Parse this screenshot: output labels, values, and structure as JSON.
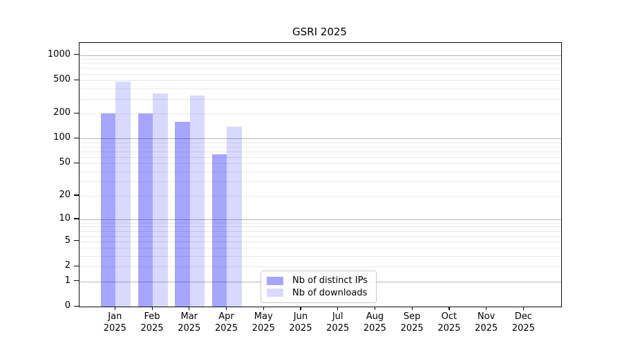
{
  "chart_data": {
    "type": "bar",
    "title": "GSRI 2025",
    "categories": [
      "Jan 2025",
      "Feb 2025",
      "Mar 2025",
      "Apr 2025",
      "May 2025",
      "Jun 2025",
      "Jul 2025",
      "Aug 2025",
      "Sep 2025",
      "Oct 2025",
      "Nov 2025",
      "Dec 2025"
    ],
    "months": [
      "Jan",
      "Feb",
      "Mar",
      "Apr",
      "May",
      "Jun",
      "Jul",
      "Aug",
      "Sep",
      "Oct",
      "Nov",
      "Dec"
    ],
    "year_label": "2025",
    "series": [
      {
        "name": "Nb of distinct IPs",
        "color": "#0000ff59",
        "values": [
          200,
          200,
          160,
          65,
          null,
          null,
          null,
          null,
          null,
          null,
          null,
          null
        ]
      },
      {
        "name": "Nb of downloads",
        "color": "#0000ff26",
        "values": [
          480,
          350,
          330,
          140,
          null,
          null,
          null,
          null,
          null,
          null,
          null,
          null
        ]
      }
    ],
    "y_ticks": [
      0,
      1,
      2,
      5,
      10,
      20,
      50,
      100,
      200,
      500,
      1000
    ],
    "y_scale": "log1p",
    "ylim": [
      0,
      1400
    ],
    "xlabel": "",
    "ylabel": "",
    "grid": "horizontal-major-minor",
    "legend_position": "lower-center",
    "colors": {
      "major_grid": "#b4b4b4",
      "minor_grid": "#e9e9e9",
      "axis": "#0a0a0a",
      "background": "#ffffff"
    }
  }
}
